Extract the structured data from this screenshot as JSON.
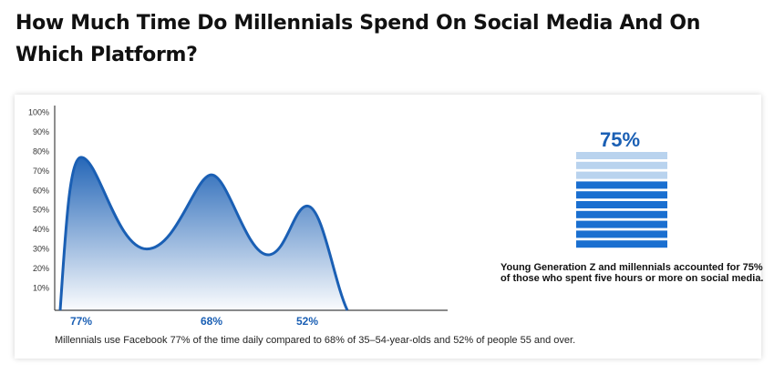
{
  "page": {
    "title": "How Much Time Do Millennials Spend On Social Media And On Which Platform?"
  },
  "chart_data": {
    "type": "area",
    "yticks": [
      "100%",
      "90%",
      "80%",
      "70%",
      "60%",
      "50%",
      "40%",
      "30%",
      "20%",
      "10%"
    ],
    "ylim": [
      0,
      100
    ],
    "peaks": [
      {
        "label": "77%",
        "value": 77
      },
      {
        "label": "68%",
        "value": 68
      },
      {
        "label": "52%",
        "value": 52
      }
    ],
    "caption": "Millennials use Facebook 77% of the time daily compared to 68% of 35–54-year-olds and 52% of people 55 and over.",
    "line_color": "#1a5fb4"
  },
  "stat": {
    "value_label": "75%",
    "value": 75,
    "bars_total": 10,
    "bars_dark": 7,
    "description": "Young Generation Z and millennials accounted for 75% of those who spent five hours or more on social media.",
    "dark_color": "#1a6fd0",
    "light_color": "#b9d3ee"
  }
}
